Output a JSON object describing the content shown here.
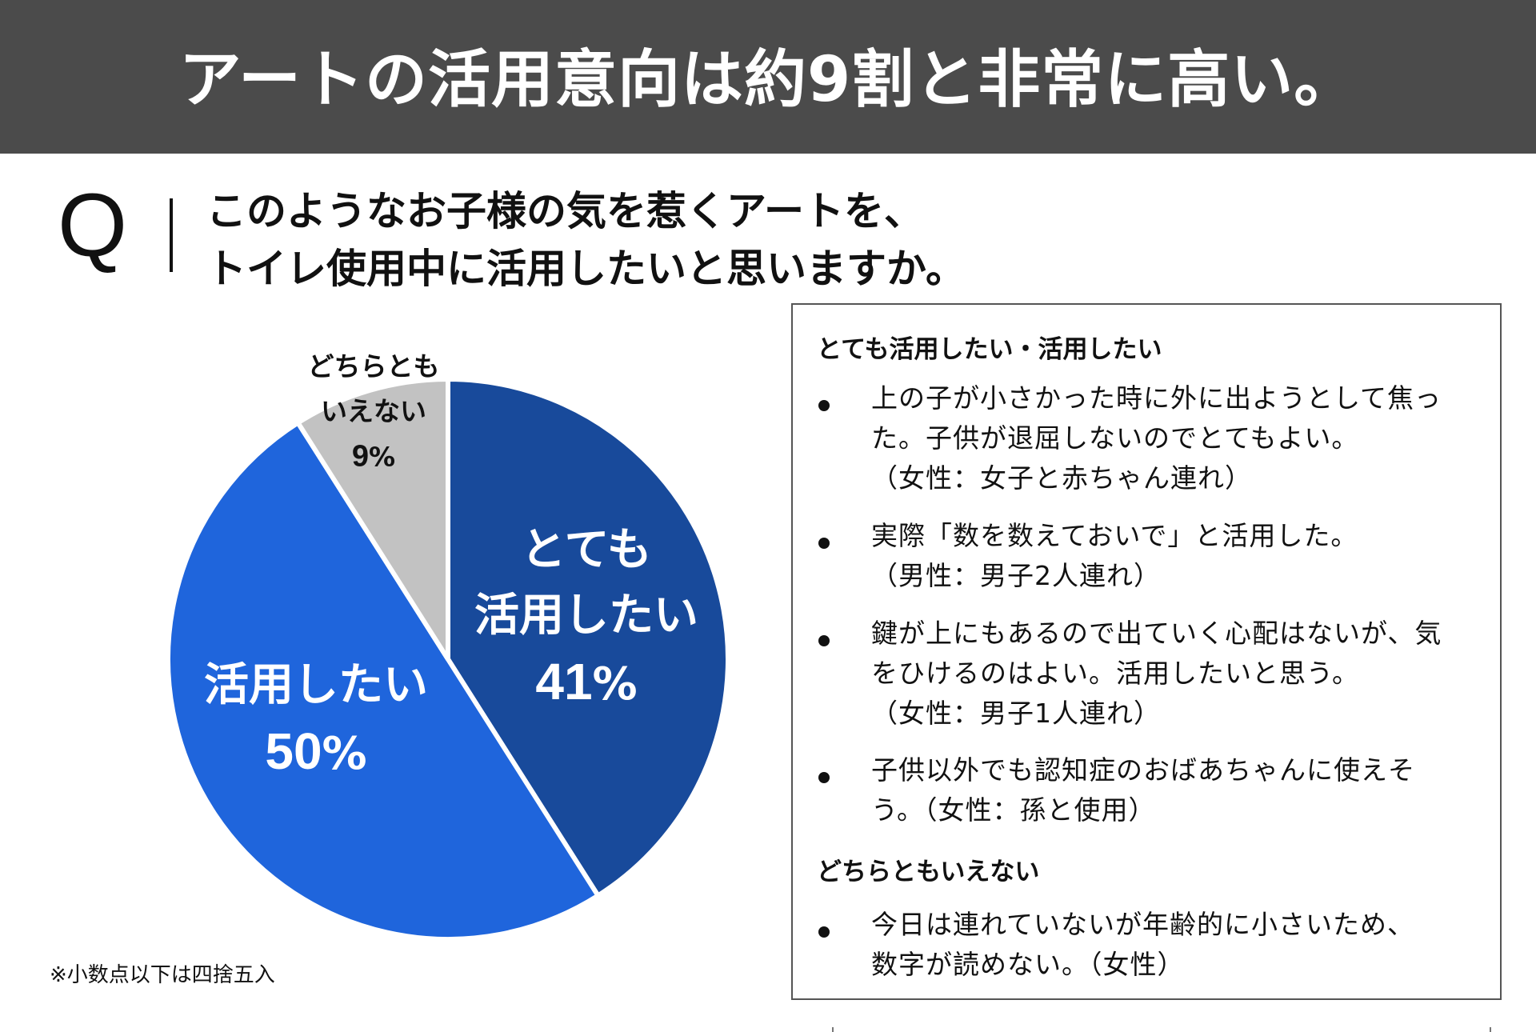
{
  "header": {
    "title": "アートの活用意向は約9割と非常に高い。"
  },
  "question": {
    "mark": "Q",
    "lines": [
      "このようなお子様の気を惹くアートを、",
      "トイレ使用中に活用したいと思いますか。"
    ]
  },
  "chart_data": {
    "type": "pie",
    "slices": [
      {
        "label_lines": [
          "とても",
          "活用したい"
        ],
        "value": 41,
        "value_text": "41",
        "unit": "%",
        "color": "#184a9b"
      },
      {
        "label_lines": [
          "活用したい"
        ],
        "value": 50,
        "value_text": "50",
        "unit": "%",
        "color": "#1f65dc"
      },
      {
        "label_lines": [
          "どちらとも",
          "いえない"
        ],
        "value": 9,
        "value_text": "9",
        "unit": "%",
        "color": "#c2c2c2"
      }
    ],
    "start": "12 o'clock",
    "direction": "clockwise"
  },
  "footnote": "※小数点以下は四捨五入",
  "comments": {
    "sections": [
      {
        "heading": "とても活用したい・活用したい",
        "items": [
          {
            "lines": [
              "上の子が小さかった時に外に出ようとして焦っ",
              "た。子供が退屈しないのでとてもよい。",
              "（女性：女子と赤ちゃん連れ）"
            ]
          },
          {
            "lines": [
              "実際「数を数えておいで」と活用した。",
              "（男性：男子2人連れ）"
            ]
          },
          {
            "lines": [
              "鍵が上にもあるので出ていく心配はないが、気",
              "をひけるのはよい。活用したいと思う。",
              "（女性：男子1人連れ）"
            ]
          },
          {
            "lines": [
              "子供以外でも認知症のおばあちゃんに使えそ",
              "う。（女性：孫と使用）"
            ]
          }
        ]
      },
      {
        "heading": "どちらともいえない",
        "items": [
          {
            "lines": [
              "今日は連れていないが年齢的に小さいため、",
              "数字が読めない。（女性）"
            ]
          }
        ]
      }
    ]
  }
}
